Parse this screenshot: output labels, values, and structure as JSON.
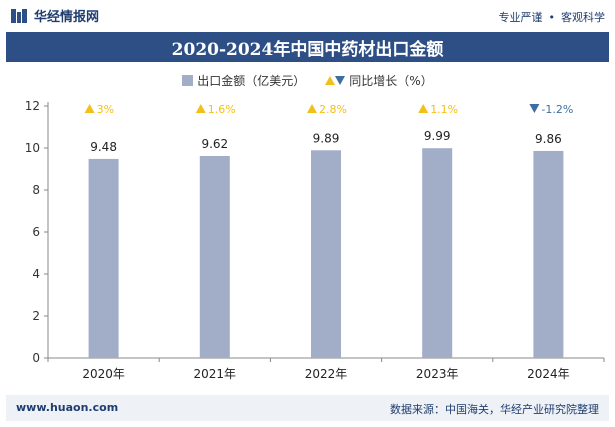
{
  "header": {
    "logo_text": "华经情报网",
    "slogan_left": "专业严谨",
    "slogan_right": "客观科学"
  },
  "footer": {
    "url": "www.huaon.com",
    "source": "数据来源：中国海关，华经产业研究院整理"
  },
  "colors": {
    "bar": "#a2adc8",
    "up": "#f2c018",
    "down": "#3d6e9f",
    "title_bg": "#2e4f86"
  },
  "chart_data": {
    "type": "bar",
    "title": "2020-2024年中国中药材出口金额",
    "categories": [
      "2020年",
      "2021年",
      "2022年",
      "2023年",
      "2024年"
    ],
    "series": [
      {
        "name": "出口金额（亿美元）",
        "values": [
          9.48,
          9.62,
          9.89,
          9.99,
          9.86
        ]
      }
    ],
    "value_labels": [
      "9.48",
      "9.62",
      "9.89",
      "9.99",
      "9.86"
    ],
    "growth": {
      "name": "同比增长（%）",
      "labels": [
        "3%",
        "1.6%",
        "2.8%",
        "1.1%",
        "-1.2%"
      ],
      "direction": [
        "up",
        "up",
        "up",
        "up",
        "down"
      ]
    },
    "yticks": [
      "0",
      "2",
      "4",
      "6",
      "8",
      "10",
      "12"
    ],
    "ylim": [
      0,
      12
    ],
    "grid": false,
    "legend_position": "top"
  }
}
